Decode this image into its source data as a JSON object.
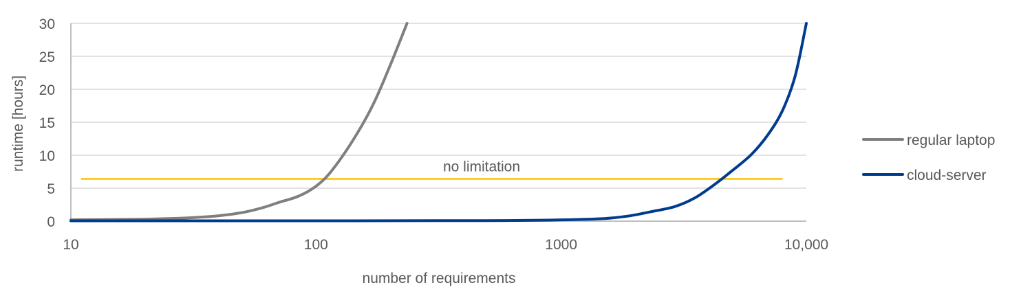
{
  "chart_data": {
    "type": "line",
    "title": "",
    "xlabel": "number of requirements",
    "ylabel": "runtime [hours]",
    "xscale": "log",
    "xlim": [
      10,
      10000
    ],
    "ylim": [
      0,
      30
    ],
    "xticks": [
      {
        "value": 10,
        "label": "10"
      },
      {
        "value": 100,
        "label": "100"
      },
      {
        "value": 1000,
        "label": "1000"
      },
      {
        "value": 10000,
        "label": "10,000"
      }
    ],
    "yticks": [
      {
        "value": 0,
        "label": "0"
      },
      {
        "value": 5,
        "label": "5"
      },
      {
        "value": 10,
        "label": "10"
      },
      {
        "value": 15,
        "label": "15"
      },
      {
        "value": 20,
        "label": "20"
      },
      {
        "value": 25,
        "label": "25"
      },
      {
        "value": 30,
        "label": "30"
      }
    ],
    "grid": "horizontal",
    "legend_position": "right",
    "series": [
      {
        "name": "regular laptop",
        "color": "#7f7f7f",
        "x": [
          10,
          20,
          30,
          40,
          50,
          60,
          70,
          85,
          100,
          115,
          140,
          170,
          200,
          235
        ],
        "y": [
          0.2,
          0.3,
          0.5,
          0.8,
          1.3,
          2.0,
          2.8,
          3.8,
          5.3,
          7.5,
          12.0,
          17.5,
          23.5,
          30
        ]
      },
      {
        "name": "cloud-server",
        "color": "#003b8e",
        "x": [
          10,
          100,
          500,
          1000,
          1500,
          1900,
          2300,
          2900,
          3500,
          4200,
          5000,
          6000,
          7000,
          8000,
          9000,
          10000
        ],
        "y": [
          0.05,
          0.05,
          0.08,
          0.2,
          0.4,
          0.8,
          1.4,
          2.2,
          3.5,
          5.5,
          7.7,
          10.2,
          13.2,
          16.8,
          22.0,
          30
        ]
      }
    ],
    "reference_line": {
      "label": "no limitation",
      "color": "#ffc000",
      "y": 6.4,
      "x_start": 11,
      "x_end": 8000
    }
  }
}
